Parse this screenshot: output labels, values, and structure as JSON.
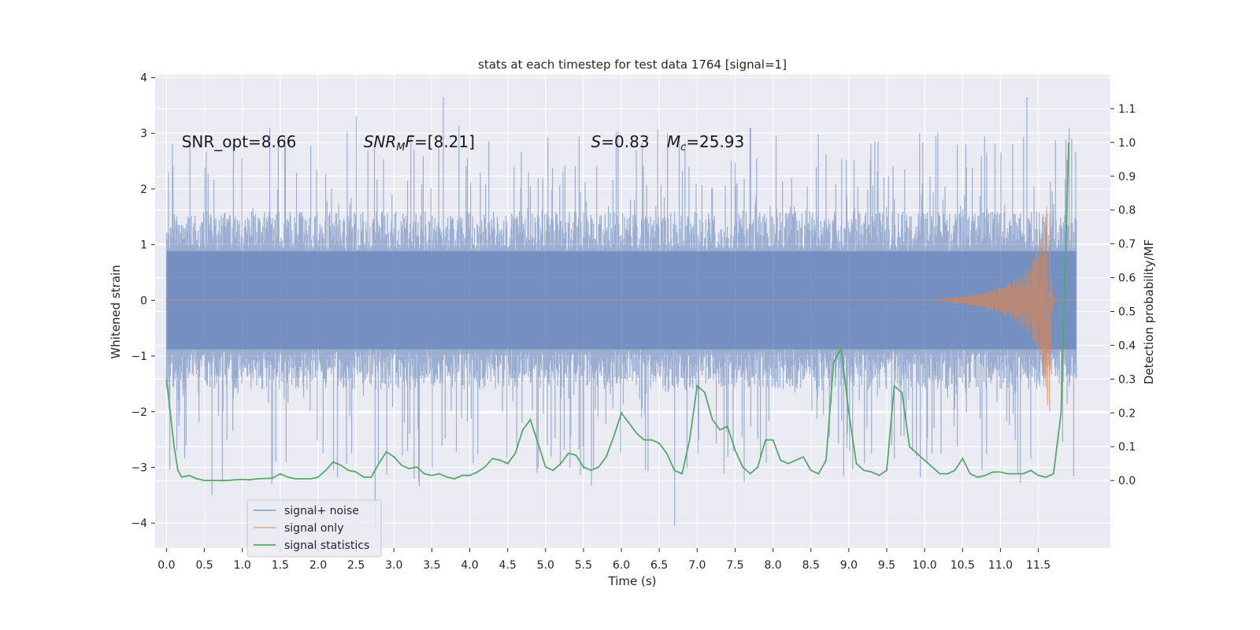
{
  "chart_data": {
    "type": "line",
    "title": "stats at each timestep for test data 1764 [signal=1]",
    "xlabel": "Time (s)",
    "ylabel": "Whitened strain",
    "ylabel_right": "Detection probability/MF",
    "xlim": [
      -0.15,
      12.45
    ],
    "ylim": [
      -4.45,
      4.05
    ],
    "ylim_right": [
      -0.2,
      1.2
    ],
    "x_ticks": [
      0.0,
      0.5,
      1.0,
      1.5,
      2.0,
      2.5,
      3.0,
      3.5,
      4.0,
      4.5,
      5.0,
      5.5,
      6.0,
      6.5,
      7.0,
      7.5,
      8.0,
      8.5,
      9.0,
      9.5,
      10.0,
      10.5,
      11.0,
      11.5
    ],
    "x_tick_labels": [
      "0.0",
      "0.5",
      "1.0",
      "1.5",
      "2.0",
      "2.5",
      "3.0",
      "3.5",
      "4.0",
      "4.5",
      "5.0",
      "5.5",
      "6.0",
      "6.5",
      "7.0",
      "7.5",
      "8.0",
      "8.5",
      "9.0",
      "9.5",
      "10.0",
      "10.5",
      "11.0",
      "11.5"
    ],
    "y_ticks": [
      -4,
      -3,
      -2,
      -1,
      0,
      1,
      2,
      3,
      4
    ],
    "y_tick_labels": [
      "−4",
      "−3",
      "−2",
      "−1",
      "0",
      "1",
      "2",
      "3",
      "4"
    ],
    "y_ticks_right": [
      0.0,
      0.1,
      0.2,
      0.3,
      0.4,
      0.5,
      0.6,
      0.7,
      0.8,
      0.9,
      1.0,
      1.1
    ],
    "y_tick_labels_right": [
      "0.0",
      "0.1",
      "0.2",
      "0.3",
      "0.4",
      "0.5",
      "0.6",
      "0.7",
      "0.8",
      "0.9",
      "1.0",
      "1.1"
    ],
    "grid": true,
    "legend_position": "lower-left",
    "annotations": [
      {
        "x": 0.2,
        "y": 2.85,
        "parts": [
          {
            "text": "SNR_opt=8.66"
          }
        ]
      },
      {
        "x": 2.6,
        "y": 2.85,
        "parts": [
          {
            "text": "SNR",
            "italic": true
          },
          {
            "text": "M",
            "italic": true,
            "sub": true
          },
          {
            "text": "F",
            "italic": true
          },
          {
            "text": "=[8.21]"
          }
        ]
      },
      {
        "x": 5.6,
        "y": 2.85,
        "parts": [
          {
            "text": "S",
            "italic": true
          },
          {
            "text": "=0.83"
          }
        ]
      },
      {
        "x": 6.6,
        "y": 2.85,
        "parts": [
          {
            "text": "M",
            "italic": true
          },
          {
            "text": "c",
            "italic": true,
            "sub": true
          },
          {
            "text": "=25.93"
          }
        ]
      }
    ],
    "series": [
      {
        "name": "signal+ noise",
        "color": "#4c72b0",
        "kind": "noise-envelope",
        "x_range": [
          0.0,
          12.0
        ],
        "typical_abs": 1.6,
        "peak_max": 3.65,
        "peak_min": -4.08
      },
      {
        "name": "signal only",
        "color": "#dd8452",
        "kind": "chirp",
        "x_range": [
          0.0,
          12.0
        ],
        "merger_time": 11.65,
        "peak_amplitude": 2.0
      },
      {
        "name": "signal statistics",
        "color": "#55a868",
        "axis": "right",
        "x": [
          0.0,
          0.1,
          0.15,
          0.2,
          0.3,
          0.4,
          0.5,
          0.6,
          0.7,
          0.8,
          0.9,
          1.0,
          1.1,
          1.2,
          1.3,
          1.4,
          1.5,
          1.6,
          1.7,
          1.8,
          1.9,
          2.0,
          2.1,
          2.2,
          2.3,
          2.4,
          2.5,
          2.6,
          2.7,
          2.8,
          2.9,
          3.0,
          3.1,
          3.2,
          3.3,
          3.4,
          3.5,
          3.6,
          3.7,
          3.8,
          3.9,
          4.0,
          4.1,
          4.2,
          4.3,
          4.4,
          4.5,
          4.6,
          4.7,
          4.8,
          4.9,
          5.0,
          5.1,
          5.2,
          5.3,
          5.4,
          5.5,
          5.6,
          5.7,
          5.8,
          5.9,
          6.0,
          6.1,
          6.2,
          6.3,
          6.4,
          6.5,
          6.6,
          6.7,
          6.8,
          6.9,
          7.0,
          7.1,
          7.2,
          7.3,
          7.4,
          7.5,
          7.6,
          7.7,
          7.8,
          7.9,
          8.0,
          8.1,
          8.2,
          8.3,
          8.4,
          8.5,
          8.6,
          8.7,
          8.8,
          8.9,
          9.0,
          9.1,
          9.2,
          9.3,
          9.4,
          9.5,
          9.6,
          9.7,
          9.8,
          9.9,
          10.0,
          10.1,
          10.2,
          10.3,
          10.4,
          10.5,
          10.6,
          10.7,
          10.8,
          10.9,
          11.0,
          11.1,
          11.2,
          11.3,
          11.4,
          11.5,
          11.6,
          11.7,
          11.8,
          11.9
        ],
        "y": [
          0.3,
          0.1,
          0.03,
          0.01,
          0.015,
          0.005,
          0.0,
          0.0,
          0.0,
          0.0,
          0.002,
          0.003,
          0.002,
          0.005,
          0.006,
          0.007,
          0.02,
          0.01,
          0.005,
          0.005,
          0.005,
          0.01,
          0.03,
          0.055,
          0.045,
          0.03,
          0.025,
          0.01,
          0.01,
          0.05,
          0.085,
          0.07,
          0.045,
          0.035,
          0.04,
          0.02,
          0.015,
          0.02,
          0.01,
          0.005,
          0.015,
          0.015,
          0.025,
          0.04,
          0.065,
          0.06,
          0.05,
          0.08,
          0.15,
          0.18,
          0.11,
          0.04,
          0.03,
          0.05,
          0.08,
          0.075,
          0.04,
          0.03,
          0.04,
          0.07,
          0.13,
          0.2,
          0.17,
          0.14,
          0.12,
          0.12,
          0.11,
          0.08,
          0.03,
          0.02,
          0.12,
          0.28,
          0.26,
          0.18,
          0.15,
          0.16,
          0.09,
          0.04,
          0.02,
          0.04,
          0.12,
          0.12,
          0.06,
          0.05,
          0.06,
          0.07,
          0.03,
          0.02,
          0.06,
          0.35,
          0.39,
          0.2,
          0.05,
          0.03,
          0.025,
          0.015,
          0.03,
          0.28,
          0.26,
          0.1,
          0.08,
          0.06,
          0.04,
          0.02,
          0.02,
          0.03,
          0.065,
          0.02,
          0.01,
          0.015,
          0.025,
          0.025,
          0.02,
          0.02,
          0.02,
          0.03,
          0.015,
          0.01,
          0.02,
          0.2,
          1.0
        ]
      }
    ]
  }
}
